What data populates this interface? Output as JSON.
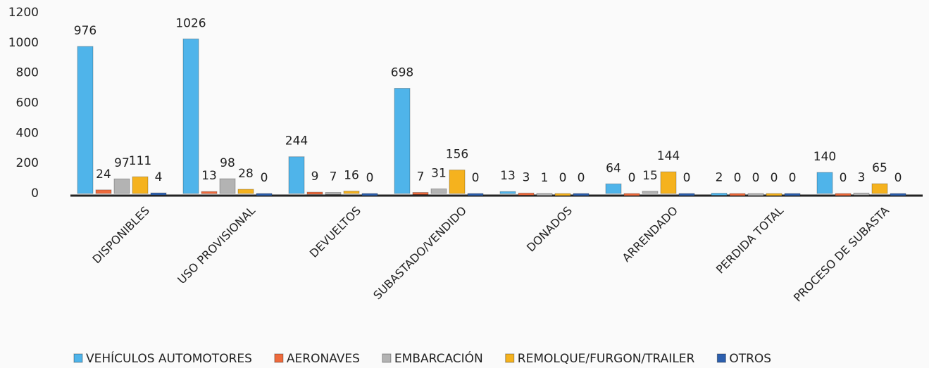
{
  "chart_data": {
    "type": "bar",
    "categories": [
      "DISPONIBLES",
      "USO PROVISIONAL",
      "DEVUELTOS",
      "SUBASTADO/VENDIDO",
      "DONADOS",
      "ARRENDADO",
      "PERDIDA TOTAL",
      "PROCESO DE SUBASTA"
    ],
    "series": [
      {
        "name": "VEHÍCULOS AUTOMOTORES",
        "color": "#4fb4ea",
        "values": [
          976,
          1026,
          244,
          698,
          13,
          64,
          2,
          140
        ]
      },
      {
        "name": "AERONAVES",
        "color": "#ee6a3c",
        "values": [
          24,
          13,
          9,
          7,
          3,
          0,
          0,
          0
        ]
      },
      {
        "name": "EMBARCACIÓN",
        "color": "#b3b3b3",
        "values": [
          97,
          98,
          7,
          31,
          1,
          15,
          0,
          3
        ]
      },
      {
        "name": "REMOLQUE/FURGON/TRAILER",
        "color": "#f5b21e",
        "values": [
          111,
          28,
          16,
          156,
          0,
          144,
          0,
          65
        ]
      },
      {
        "name": "OTROS",
        "color": "#2c5fae",
        "values": [
          4,
          0,
          0,
          0,
          0,
          0,
          0,
          0
        ]
      }
    ],
    "ylim": [
      0,
      1200
    ],
    "yticks": [
      0,
      200,
      400,
      600,
      800,
      1000,
      1200
    ],
    "grid": false,
    "legend": "bottom"
  }
}
